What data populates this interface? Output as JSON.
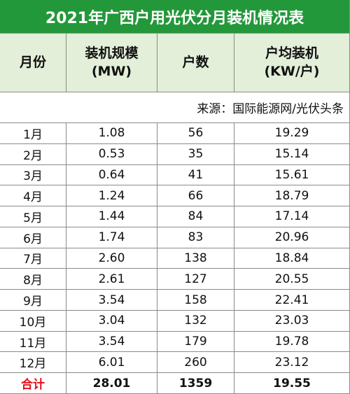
{
  "title": "2021年广西户用光伏分月装机情况表",
  "header": [
    [
      "月份"
    ],
    [
      "装机规模",
      "(MW)"
    ],
    [
      "户数"
    ],
    [
      "户均装机",
      "(KW/户)"
    ]
  ],
  "source": "来源：国际能源网/光伏头条",
  "rows": [
    [
      "1月",
      "1.08",
      "56",
      "19.29"
    ],
    [
      "2月",
      "0.53",
      "35",
      "15.14"
    ],
    [
      "3月",
      "0.64",
      "41",
      "15.61"
    ],
    [
      "4月",
      "1.24",
      "66",
      "18.79"
    ],
    [
      "5月",
      "1.44",
      "84",
      "17.14"
    ],
    [
      "6月",
      "1.74",
      "83",
      "20.96"
    ],
    [
      "7月",
      "2.60",
      "138",
      "18.84"
    ],
    [
      "8月",
      "2.61",
      "127",
      "20.55"
    ],
    [
      "9月",
      "3.54",
      "158",
      "22.41"
    ],
    [
      "10月",
      "3.04",
      "132",
      "23.03"
    ],
    [
      "11月",
      "3.54",
      "179",
      "19.78"
    ],
    [
      "12月",
      "6.01",
      "260",
      "23.12"
    ]
  ],
  "total": [
    "合计",
    "28.01",
    "1359",
    "19.55"
  ]
}
